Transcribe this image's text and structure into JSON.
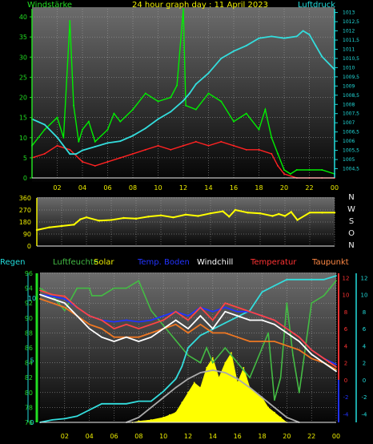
{
  "chart_data": [
    {
      "type": "line",
      "title": "24 hour graph day : 11 April 2023",
      "left_axis_label": "Windstärke",
      "right_axis_label": "Luftdruck",
      "x_ticks": [
        "02",
        "04",
        "06",
        "08",
        "10",
        "12",
        "14",
        "16",
        "18",
        "20",
        "22",
        "00"
      ],
      "y_ticks_left": [
        0,
        5,
        10,
        15,
        20,
        25,
        30,
        35,
        40
      ],
      "y_ticks_right": [
        "1004,5",
        "1005",
        "1005,5",
        "1006",
        "1006,5",
        "1007",
        "1007,5",
        "1008",
        "1008,5",
        "1009",
        "1009,5",
        "1010",
        "1010,5",
        "1011",
        "1011,5",
        "1012",
        "1012,5",
        "1013"
      ],
      "ylim_left": [
        0,
        42
      ],
      "ylim_right": [
        1004,
        1013.2
      ],
      "xlim": [
        0,
        24
      ],
      "series": [
        {
          "key": "wind_gust",
          "color": "#00ee00",
          "x": [
            0,
            1,
            2,
            2.5,
            3,
            3.3,
            3.7,
            4,
            4.5,
            5,
            6,
            6.5,
            7,
            8,
            9,
            10,
            11,
            11.5,
            12,
            12.2,
            13,
            14,
            15,
            16,
            17,
            18,
            18.5,
            19,
            19.5,
            20,
            20.5,
            21,
            22,
            23,
            24
          ],
          "values": [
            8,
            12,
            15,
            10,
            39,
            18,
            9,
            12,
            14,
            9,
            12,
            16,
            14,
            17,
            21,
            19,
            20,
            23,
            42,
            18,
            17,
            21,
            19,
            14,
            16,
            12,
            17,
            10,
            6,
            2,
            1,
            2,
            2,
            2,
            1
          ]
        },
        {
          "key": "wind_avg",
          "color": "#ff2222",
          "x": [
            0,
            1,
            2,
            3,
            4,
            5,
            6,
            7,
            8,
            9,
            10,
            11,
            12,
            13,
            14,
            15,
            16,
            17,
            18,
            19,
            19.5,
            20,
            21,
            22,
            23,
            24
          ],
          "values": [
            5,
            6,
            8,
            7,
            4,
            3,
            4,
            5,
            6,
            7,
            8,
            7,
            8,
            9,
            8,
            9,
            8,
            7,
            7,
            6,
            3,
            1,
            0,
            0,
            0,
            0
          ]
        },
        {
          "key": "pressure",
          "color": "#33dddd",
          "x": [
            0,
            1,
            2,
            3,
            3.5,
            4,
            5,
            6,
            7,
            8,
            9,
            10,
            11,
            12,
            12.5,
            13,
            14,
            15,
            16,
            17,
            18,
            19,
            20,
            21,
            21.5,
            22,
            22.5,
            23,
            24
          ],
          "values": [
            1007.2,
            1006.9,
            1006.2,
            1005.3,
            1005.3,
            1005.5,
            1005.7,
            1005.9,
            1006.0,
            1006.3,
            1006.7,
            1007.2,
            1007.6,
            1008.2,
            1008.6,
            1009.1,
            1009.7,
            1010.5,
            1010.9,
            1011.2,
            1011.6,
            1011.7,
            1011.6,
            1011.7,
            1012.0,
            1011.8,
            1011.2,
            1010.6,
            1009.9
          ]
        }
      ]
    },
    {
      "type": "line",
      "y_ticks_left": [
        0,
        90,
        180,
        270,
        360
      ],
      "ylim_left": [
        0,
        360
      ],
      "direction_labels": [
        "N",
        "W",
        "S",
        "O",
        "N"
      ],
      "series": [
        {
          "key": "wind_direction",
          "color": "#ffff00",
          "x": [
            0,
            1,
            2,
            3,
            3.5,
            4,
            5,
            6,
            7,
            8,
            9,
            10,
            11,
            12,
            13,
            14,
            15,
            15.5,
            16,
            17,
            18,
            19,
            19.5,
            20,
            20.5,
            21,
            22,
            23,
            24
          ],
          "values": [
            120,
            140,
            150,
            160,
            200,
            215,
            190,
            195,
            210,
            205,
            220,
            230,
            215,
            235,
            225,
            245,
            260,
            220,
            270,
            250,
            245,
            225,
            240,
            225,
            255,
            195,
            250,
            250,
            250
          ]
        }
      ]
    },
    {
      "type": "line",
      "legend": [
        "Regen",
        "Luftfeuchte",
        "Solar",
        "Temp. Boden",
        "Windchill",
        "Temperatur",
        "Taupunkt"
      ],
      "x_ticks": [
        "02",
        "04",
        "06",
        "08",
        "10",
        "12",
        "14",
        "16",
        "18",
        "20",
        "22",
        "00"
      ],
      "y_ticks_humidity": [
        76,
        78,
        80,
        82,
        84,
        86,
        88,
        90,
        92,
        94,
        96
      ],
      "ylim_humidity": [
        76,
        96
      ],
      "y_ticks_temp": [
        -4,
        -2,
        0,
        2,
        4,
        6,
        8,
        10,
        12
      ],
      "ylim_temp": [
        -5,
        12.5
      ],
      "y_ticks_rain": [
        0,
        5,
        10
      ],
      "ylim_rain": [
        0,
        12
      ],
      "series": [
        {
          "key": "humidity",
          "color": "#44bb44",
          "x": [
            0,
            1,
            2,
            3,
            4,
            4.2,
            5,
            6,
            7,
            8,
            8.5,
            9,
            10,
            11,
            12,
            13,
            13.5,
            14,
            15,
            16,
            17,
            18,
            18.5,
            19,
            19.5,
            20,
            20.5,
            21,
            22,
            23,
            24
          ],
          "values": [
            94,
            93,
            91,
            94,
            94,
            93,
            93,
            94,
            94,
            95,
            93,
            91,
            89,
            87,
            85,
            84,
            86,
            84,
            86,
            84,
            82,
            86,
            88,
            79,
            82,
            92,
            85,
            80,
            92,
            93,
            95
          ]
        },
        {
          "key": "rain",
          "color": "#33dddd",
          "x": [
            0,
            1,
            2,
            3,
            4,
            5,
            6,
            7,
            8,
            9,
            10,
            11,
            11.5,
            12,
            13,
            14,
            15,
            16,
            17,
            18,
            19,
            20,
            21,
            22,
            23,
            24
          ],
          "values": [
            0,
            0.2,
            0.3,
            0.5,
            1,
            1.5,
            1.5,
            1.5,
            1.7,
            1.7,
            2.5,
            3.5,
            4.5,
            6,
            7,
            7.5,
            8,
            8.5,
            9,
            10.5,
            11,
            11.5,
            11.5,
            11.5,
            11.5,
            11.8
          ]
        },
        {
          "key": "temperature",
          "color": "#ff4444",
          "x": [
            0,
            1,
            2,
            3,
            4,
            5,
            6,
            7,
            8,
            9,
            10,
            11,
            12,
            13,
            14,
            15,
            16,
            17,
            18,
            19,
            20,
            21,
            22,
            23,
            24
          ],
          "values": [
            10.5,
            10,
            9.8,
            8.5,
            7.5,
            7,
            6,
            6.5,
            6,
            6.5,
            7,
            8,
            7,
            8.5,
            7,
            9,
            8.5,
            8,
            7.5,
            7,
            6,
            5,
            3.5,
            2.5,
            1.5
          ]
        },
        {
          "key": "windchill",
          "color": "#ffffff",
          "x": [
            0,
            1,
            2,
            3,
            4,
            5,
            6,
            7,
            8,
            9,
            10,
            11,
            12,
            13,
            14,
            15,
            16,
            17,
            18,
            19,
            20,
            21,
            22,
            23,
            24
          ],
          "values": [
            10,
            9.5,
            9,
            7.5,
            6,
            5,
            4.5,
            5,
            4.5,
            5,
            6,
            7,
            6,
            7.5,
            6,
            8,
            7.5,
            7,
            7,
            6.5,
            5.5,
            4.5,
            3,
            2,
            1
          ]
        },
        {
          "key": "soil_temp",
          "color": "#2233ff",
          "x": [
            0,
            1,
            2,
            3,
            4,
            5,
            6,
            7,
            8,
            9,
            10,
            11,
            12,
            13,
            14,
            15,
            16,
            17,
            18,
            19,
            20,
            21,
            22,
            23,
            24
          ],
          "values": [
            10,
            9.8,
            9.5,
            8.5,
            7.5,
            7,
            6.8,
            7,
            6.8,
            7,
            7.5,
            8,
            7.5,
            8.5,
            8,
            8.5,
            8,
            8,
            7.5,
            7,
            6,
            5,
            3.5,
            2.5,
            1.8
          ]
        },
        {
          "key": "dewpoint",
          "color": "#ee7722",
          "x": [
            0,
            1,
            2,
            3,
            4,
            5,
            6,
            7,
            8,
            9,
            10,
            11,
            12,
            13,
            14,
            15,
            16,
            17,
            18,
            19,
            20,
            21,
            22,
            23,
            24
          ],
          "values": [
            9.5,
            9,
            8.5,
            7.5,
            6.5,
            6,
            5,
            5,
            5,
            5.5,
            6,
            6.5,
            5.5,
            6.5,
            5.5,
            5.5,
            5,
            4.5,
            4.5,
            4.5,
            4,
            3.5,
            2.5,
            2,
            1.2
          ]
        },
        {
          "key": "solar",
          "color": "#ffff00",
          "x": [
            7.5,
            8,
            9,
            10,
            10.5,
            11,
            11.5,
            12,
            12.5,
            13,
            13.5,
            14,
            14.5,
            15,
            15.5,
            16,
            16.5,
            17,
            17.5,
            18,
            18.5,
            19,
            19.5,
            20
          ],
          "values": [
            0,
            0.5,
            1,
            2,
            3,
            4,
            8,
            12,
            16,
            14,
            22,
            26,
            18,
            24,
            28,
            16,
            22,
            14,
            12,
            10,
            6,
            4,
            2,
            0
          ]
        },
        {
          "key": "solar_theory",
          "color": "#aaaaaa",
          "x": [
            7,
            8,
            9,
            10,
            11,
            12,
            13,
            14,
            15,
            16,
            17,
            18,
            19,
            20,
            21
          ],
          "values": [
            0,
            2,
            6,
            10,
            14,
            17.5,
            20,
            21,
            20,
            17.5,
            14,
            10,
            6,
            2,
            0
          ]
        }
      ]
    }
  ],
  "colors": {
    "panel_top": "#666666",
    "panel_bottom": "#050505",
    "grid": "#aaaaaa",
    "axis": "#eeeeee"
  }
}
